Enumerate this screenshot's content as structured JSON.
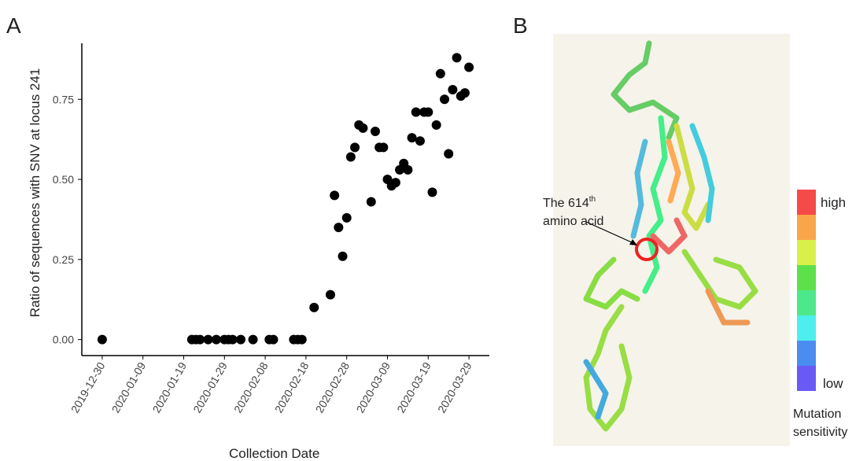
{
  "chart_data": {
    "type": "scatter",
    "label": "A",
    "x_label": "Collection Date",
    "y_label": "Ratio of sequences with SNV at locus 241",
    "x": [
      "2019-12-30",
      "2020-01-21",
      "2020-01-22",
      "2020-01-23",
      "2020-01-25",
      "2020-01-27",
      "2020-01-29",
      "2020-01-30",
      "2020-01-31",
      "2020-02-02",
      "2020-02-05",
      "2020-02-09",
      "2020-02-10",
      "2020-02-15",
      "2020-02-16",
      "2020-02-17",
      "2020-02-20",
      "2020-02-24",
      "2020-02-25",
      "2020-02-26",
      "2020-02-27",
      "2020-02-28",
      "2020-02-29",
      "2020-03-01",
      "2020-03-02",
      "2020-03-03",
      "2020-03-05",
      "2020-03-06",
      "2020-03-07",
      "2020-03-08",
      "2020-03-09",
      "2020-03-10",
      "2020-03-11",
      "2020-03-12",
      "2020-03-13",
      "2020-03-14",
      "2020-03-15",
      "2020-03-16",
      "2020-03-17",
      "2020-03-18",
      "2020-03-19",
      "2020-03-20",
      "2020-03-21",
      "2020-03-22",
      "2020-03-23",
      "2020-03-24",
      "2020-03-25",
      "2020-03-26",
      "2020-03-27",
      "2020-03-28",
      "2020-03-29"
    ],
    "values": [
      0,
      0,
      0,
      0,
      0,
      0,
      0,
      0,
      0,
      0,
      0,
      0,
      0,
      0,
      0,
      0,
      0.1,
      0.14,
      0.45,
      0.35,
      0.26,
      0.38,
      0.57,
      0.6,
      0.67,
      0.66,
      0.43,
      0.65,
      0.6,
      0.6,
      0.5,
      0.48,
      0.49,
      0.53,
      0.55,
      0.53,
      0.63,
      0.71,
      0.62,
      0.71,
      0.71,
      0.46,
      0.67,
      0.83,
      0.75,
      0.58,
      0.78,
      0.88,
      0.76,
      0.77,
      0.85
    ],
    "color": "#000000",
    "xlim": [
      "2019-12-25",
      "2020-04-03"
    ],
    "xticks": [
      "2019-12-30",
      "2020-01-09",
      "2020-01-19",
      "2020-01-29",
      "2020-02-08",
      "2020-02-18",
      "2020-02-28",
      "2020-03-09",
      "2020-03-19",
      "2020-03-29"
    ],
    "ylim": [
      -0.05,
      0.925
    ],
    "yticks": [
      {
        "value": 0,
        "label": "0.00"
      },
      {
        "value": 0.25,
        "label": "0.25"
      },
      {
        "value": 0.5,
        "label": "0.50"
      },
      {
        "value": 0.75,
        "label": "0.75"
      }
    ],
    "grid": false
  },
  "panel_b": {
    "label": "B",
    "annotation": {
      "text": "The 614",
      "superscript": "th",
      "line2": "amino acid"
    },
    "legend": {
      "high": "high",
      "low": "low",
      "title_line1": "Mutation",
      "title_line2": "sensitivity"
    }
  }
}
